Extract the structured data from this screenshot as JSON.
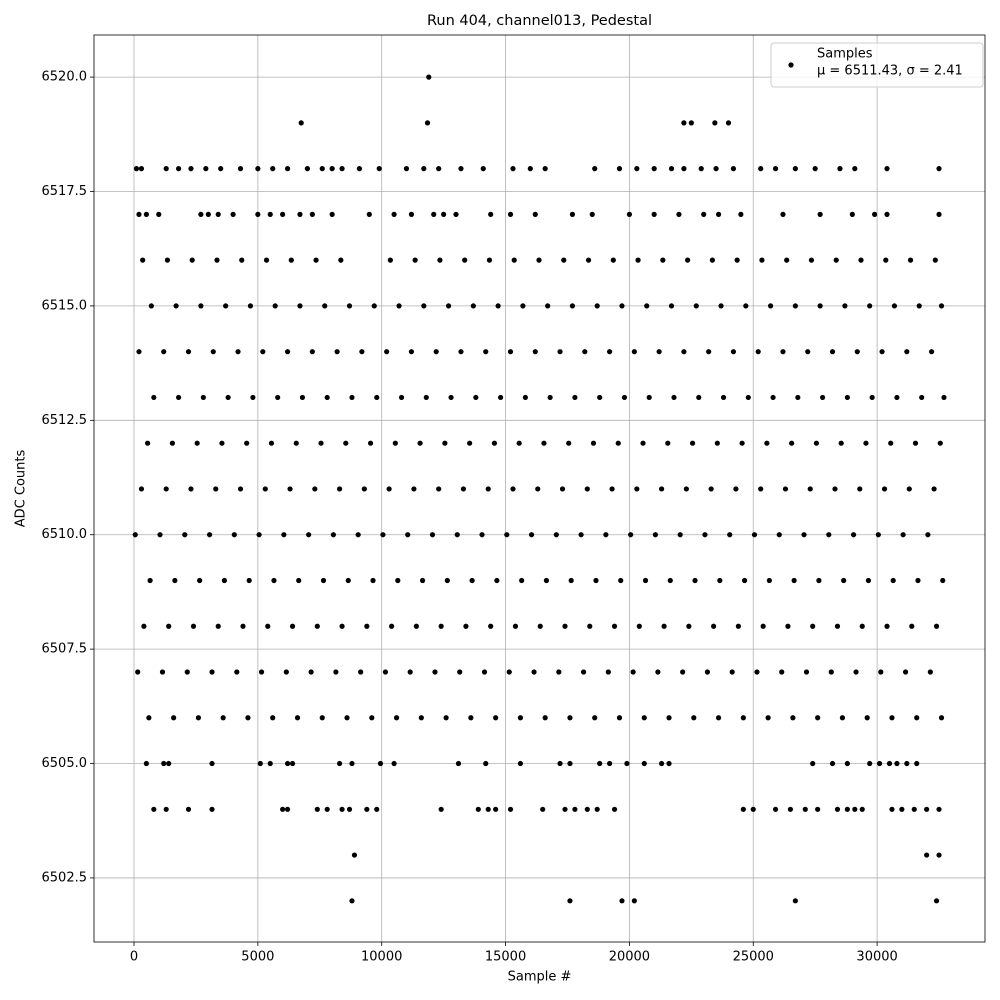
{
  "chart_data": {
    "type": "scatter",
    "title": "Run 404, channel013, Pedestal",
    "xlabel": "Sample #",
    "ylabel": "ADC Counts",
    "annotation": "μ = 6511.43, σ = 2.41",
    "legend": "upper right",
    "grid": true,
    "xlim": [
      -1615,
      34356
    ],
    "ylim": [
      6501.1,
      6520.92
    ],
    "xticks": [
      0,
      5000,
      10000,
      15000,
      20000,
      25000,
      30000
    ],
    "yticks": [
      6502.5,
      {
        "value": 6505,
        "label": "6505.0"
      },
      6507.5,
      {
        "value": 6510,
        "label": "6510.0"
      },
      6512.5,
      {
        "value": 6515,
        "label": "6515.0"
      },
      6517.5,
      {
        "value": 6520,
        "label": "6520.0"
      }
    ],
    "series": [
      {
        "name": "Samples",
        "color": "#000000",
        "x": [
          150,
          1150,
          2150,
          3150,
          4150,
          5150,
          6150,
          7150,
          8150,
          9150,
          10150,
          11150,
          12150,
          13150,
          14150,
          15150,
          16150,
          17150,
          18150,
          19150,
          20150,
          21150,
          22150,
          23150,
          24150,
          25150,
          26150,
          27150,
          28150,
          29150,
          30150,
          31150,
          32150,
          400,
          1400,
          2400,
          3400,
          4400,
          5400,
          6400,
          7400,
          8400,
          9400,
          10400,
          11400,
          12400,
          13400,
          14400,
          15400,
          16400,
          17400,
          18400,
          19400,
          20400,
          21400,
          22400,
          23400,
          24400,
          25400,
          26400,
          27400,
          28400,
          29400,
          30400,
          31400,
          32400,
          650,
          1650,
          2650,
          3650,
          4650,
          5650,
          6650,
          7650,
          8650,
          9650,
          10650,
          11650,
          12650,
          13650,
          14650,
          15650,
          16650,
          17650,
          18650,
          19650,
          20650,
          21650,
          22650,
          23650,
          24650,
          25650,
          26650,
          27650,
          28650,
          29650,
          30650,
          31650,
          32650,
          50,
          1050,
          2050,
          3050,
          4050,
          5050,
          6050,
          7050,
          8050,
          9050,
          10050,
          11050,
          12050,
          13050,
          14050,
          15050,
          16050,
          17050,
          18050,
          19050,
          20050,
          21050,
          22050,
          23050,
          24050,
          25050,
          26050,
          27050,
          28050,
          29050,
          30050,
          31050,
          32050,
          300,
          1300,
          2300,
          3300,
          4300,
          5300,
          6300,
          7300,
          8300,
          9300,
          10300,
          11300,
          12300,
          13300,
          14300,
          15300,
          16300,
          17300,
          18300,
          19300,
          20300,
          21300,
          22300,
          23300,
          24300,
          25300,
          26300,
          27300,
          28300,
          29300,
          30300,
          31300,
          32300,
          550,
          1550,
          2550,
          3550,
          4550,
          5550,
          6550,
          7550,
          8550,
          9550,
          10550,
          11550,
          12550,
          13550,
          14550,
          15550,
          16550,
          17550,
          18550,
          19550,
          20550,
          21550,
          22550,
          23550,
          24550,
          25550,
          26550,
          27550,
          28550,
          29550,
          30550,
          31550,
          32550,
          800,
          1800,
          2800,
          3800,
          4800,
          5800,
          6800,
          7800,
          8800,
          9800,
          10800,
          11800,
          12800,
          13800,
          14800,
          15800,
          16800,
          17800,
          18800,
          19800,
          20800,
          21800,
          22800,
          23800,
          24800,
          25800,
          26800,
          27800,
          28800,
          29800,
          30800,
          31800,
          32700,
          200,
          1200,
          2200,
          3200,
          4200,
          5200,
          6200,
          7200,
          8200,
          9200,
          10200,
          11200,
          12200,
          13200,
          14200,
          15200,
          16200,
          17200,
          18200,
          19200,
          20200,
          21200,
          22200,
          23200,
          24200,
          25200,
          26200,
          27200,
          28200,
          29200,
          30200,
          31200,
          32200,
          700,
          1700,
          2700,
          3700,
          4700,
          5700,
          6700,
          7700,
          8700,
          9700,
          10700,
          11700,
          12700,
          13700,
          14700,
          15700,
          16700,
          17700,
          18700,
          19700,
          20700,
          21700,
          22700,
          23700,
          24700,
          25700,
          26700,
          27700,
          28700,
          29700,
          30700,
          31700,
          32600,
          350,
          1350,
          2350,
          3350,
          4350,
          5350,
          6350,
          7350,
          8350,
          10350,
          11350,
          12350,
          13350,
          14350,
          15350,
          16350,
          17350,
          18350,
          19350,
          20350,
          21350,
          22350,
          23350,
          24350,
          25350,
          26350,
          27350,
          28350,
          29350,
          30350,
          31350,
          32350,
          600,
          1600,
          2600,
          3600,
          4600,
          5600,
          6600,
          7600,
          8600,
          9600,
          10600,
          11600,
          12600,
          13600,
          14600,
          15600,
          16600,
          17600,
          18600,
          19600,
          20600,
          21600,
          22600,
          23600,
          24600,
          25600,
          26600,
          27600,
          28600,
          29600,
          30600,
          31600,
          32600,
          200,
          500,
          1000,
          2700,
          3000,
          3400,
          4000,
          5000,
          5500,
          6000,
          6700,
          7200,
          8000,
          9500,
          10500,
          11200,
          12100,
          12500,
          13000,
          14400,
          15200,
          16200,
          17700,
          18500,
          20000,
          21000,
          22000,
          23000,
          23600,
          24500,
          26200,
          27700,
          29000,
          29900,
          30400,
          32500,
          100,
          300,
          1300,
          1800,
          2300,
          2900,
          3500,
          4300,
          5000,
          5600,
          6200,
          7000,
          7600,
          8000,
          8400,
          9100,
          9900,
          11000,
          11700,
          12300,
          13200,
          14100,
          15300,
          16000,
          16600,
          18600,
          19600,
          20300,
          21000,
          21700,
          22200,
          22900,
          23500,
          24200,
          25300,
          25900,
          26700,
          27500,
          28500,
          29100,
          30400,
          32500,
          6750,
          11850,
          22200,
          22500,
          23450,
          24000,
          11900,
          500,
          1200,
          1400,
          3150,
          5100,
          5500,
          6200,
          6400,
          8300,
          8800,
          9950,
          10500,
          13100,
          14200,
          15600,
          17200,
          17600,
          18800,
          19200,
          19900,
          20600,
          21300,
          21600,
          27400,
          28200,
          28800,
          29700,
          30100,
          30500,
          30800,
          31200,
          31600,
          800,
          1300,
          2200,
          3150,
          6000,
          6200,
          7400,
          7800,
          8400,
          8700,
          9400,
          9800,
          12400,
          13900,
          14300,
          14600,
          15200,
          16500,
          17400,
          17800,
          18300,
          18700,
          19400,
          24600,
          25000,
          25900,
          26500,
          27100,
          27600,
          28400,
          28800,
          29100,
          29400,
          30600,
          31000,
          31500,
          32000,
          32500,
          8900,
          32000,
          32500,
          8800,
          17600,
          19700,
          20200,
          26700,
          32400
        ],
        "y": [
          6507,
          6507,
          6507,
          6507,
          6507,
          6507,
          6507,
          6507,
          6507,
          6507,
          6507,
          6507,
          6507,
          6507,
          6507,
          6507,
          6507,
          6507,
          6507,
          6507,
          6507,
          6507,
          6507,
          6507,
          6507,
          6507,
          6507,
          6507,
          6507,
          6507,
          6507,
          6507,
          6507,
          6508,
          6508,
          6508,
          6508,
          6508,
          6508,
          6508,
          6508,
          6508,
          6508,
          6508,
          6508,
          6508,
          6508,
          6508,
          6508,
          6508,
          6508,
          6508,
          6508,
          6508,
          6508,
          6508,
          6508,
          6508,
          6508,
          6508,
          6508,
          6508,
          6508,
          6508,
          6508,
          6508,
          6509,
          6509,
          6509,
          6509,
          6509,
          6509,
          6509,
          6509,
          6509,
          6509,
          6509,
          6509,
          6509,
          6509,
          6509,
          6509,
          6509,
          6509,
          6509,
          6509,
          6509,
          6509,
          6509,
          6509,
          6509,
          6509,
          6509,
          6509,
          6509,
          6509,
          6509,
          6509,
          6509,
          6510,
          6510,
          6510,
          6510,
          6510,
          6510,
          6510,
          6510,
          6510,
          6510,
          6510,
          6510,
          6510,
          6510,
          6510,
          6510,
          6510,
          6510,
          6510,
          6510,
          6510,
          6510,
          6510,
          6510,
          6510,
          6510,
          6510,
          6510,
          6510,
          6510,
          6510,
          6510,
          6510,
          6511,
          6511,
          6511,
          6511,
          6511,
          6511,
          6511,
          6511,
          6511,
          6511,
          6511,
          6511,
          6511,
          6511,
          6511,
          6511,
          6511,
          6511,
          6511,
          6511,
          6511,
          6511,
          6511,
          6511,
          6511,
          6511,
          6511,
          6511,
          6511,
          6511,
          6511,
          6511,
          6511,
          6512,
          6512,
          6512,
          6512,
          6512,
          6512,
          6512,
          6512,
          6512,
          6512,
          6512,
          6512,
          6512,
          6512,
          6512,
          6512,
          6512,
          6512,
          6512,
          6512,
          6512,
          6512,
          6512,
          6512,
          6512,
          6512,
          6512,
          6512,
          6512,
          6512,
          6512,
          6512,
          6512,
          6513,
          6513,
          6513,
          6513,
          6513,
          6513,
          6513,
          6513,
          6513,
          6513,
          6513,
          6513,
          6513,
          6513,
          6513,
          6513,
          6513,
          6513,
          6513,
          6513,
          6513,
          6513,
          6513,
          6513,
          6513,
          6513,
          6513,
          6513,
          6513,
          6513,
          6513,
          6513,
          6513,
          6514,
          6514,
          6514,
          6514,
          6514,
          6514,
          6514,
          6514,
          6514,
          6514,
          6514,
          6514,
          6514,
          6514,
          6514,
          6514,
          6514,
          6514,
          6514,
          6514,
          6514,
          6514,
          6514,
          6514,
          6514,
          6514,
          6514,
          6514,
          6514,
          6514,
          6514,
          6514,
          6514,
          6515,
          6515,
          6515,
          6515,
          6515,
          6515,
          6515,
          6515,
          6515,
          6515,
          6515,
          6515,
          6515,
          6515,
          6515,
          6515,
          6515,
          6515,
          6515,
          6515,
          6515,
          6515,
          6515,
          6515,
          6515,
          6515,
          6515,
          6515,
          6515,
          6515,
          6515,
          6515,
          6515,
          6516,
          6516,
          6516,
          6516,
          6516,
          6516,
          6516,
          6516,
          6516,
          6516,
          6516,
          6516,
          6516,
          6516,
          6516,
          6516,
          6516,
          6516,
          6516,
          6516,
          6516,
          6516,
          6516,
          6516,
          6516,
          6516,
          6516,
          6516,
          6516,
          6516,
          6516,
          6516,
          6506,
          6506,
          6506,
          6506,
          6506,
          6506,
          6506,
          6506,
          6506,
          6506,
          6506,
          6506,
          6506,
          6506,
          6506,
          6506,
          6506,
          6506,
          6506,
          6506,
          6506,
          6506,
          6506,
          6506,
          6506,
          6506,
          6506,
          6506,
          6506,
          6506,
          6506,
          6506,
          6506,
          6517,
          6517,
          6517,
          6517,
          6517,
          6517,
          6517,
          6517,
          6517,
          6517,
          6517,
          6517,
          6517,
          6517,
          6517,
          6517,
          6517,
          6517,
          6517,
          6517,
          6517,
          6517,
          6517,
          6517,
          6517,
          6517,
          6517,
          6517,
          6517,
          6517,
          6517,
          6517,
          6517,
          6517,
          6517,
          6517,
          6518,
          6518,
          6518,
          6518,
          6518,
          6518,
          6518,
          6518,
          6518,
          6518,
          6518,
          6518,
          6518,
          6518,
          6518,
          6518,
          6518,
          6518,
          6518,
          6518,
          6518,
          6518,
          6518,
          6518,
          6518,
          6518,
          6518,
          6518,
          6518,
          6518,
          6518,
          6518,
          6518,
          6518,
          6518,
          6518,
          6518,
          6518,
          6518,
          6518,
          6518,
          6518,
          6519,
          6519,
          6519,
          6519,
          6519,
          6519,
          6520,
          6505,
          6505,
          6505,
          6505,
          6505,
          6505,
          6505,
          6505,
          6505,
          6505,
          6505,
          6505,
          6505,
          6505,
          6505,
          6505,
          6505,
          6505,
          6505,
          6505,
          6505,
          6505,
          6505,
          6505,
          6505,
          6505,
          6505,
          6505,
          6505,
          6505,
          6505,
          6505,
          6504,
          6504,
          6504,
          6504,
          6504,
          6504,
          6504,
          6504,
          6504,
          6504,
          6504,
          6504,
          6504,
          6504,
          6504,
          6504,
          6504,
          6504,
          6504,
          6504,
          6504,
          6504,
          6504,
          6504,
          6504,
          6504,
          6504,
          6504,
          6504,
          6504,
          6504,
          6504,
          6504,
          6504,
          6504,
          6504,
          6504,
          6504,
          6503,
          6503,
          6503,
          6502,
          6502,
          6502,
          6502,
          6502,
          6502
        ]
      }
    ]
  }
}
